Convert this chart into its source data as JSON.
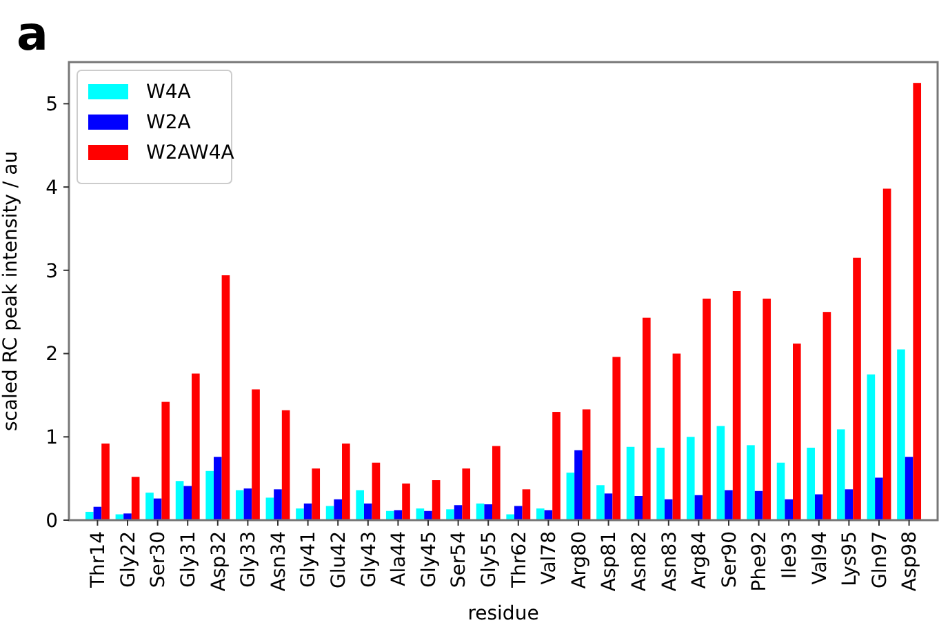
{
  "chart_data": {
    "type": "bar",
    "title": "a",
    "xlabel": "residue",
    "ylabel": "scaled RC peak intensity / au",
    "categories": [
      "Thr14",
      "Gly22",
      "Ser30",
      "Gly31",
      "Asp32",
      "Gly33",
      "Asn34",
      "Gly41",
      "Glu42",
      "Gly43",
      "Ala44",
      "Gly45",
      "Ser54",
      "Gly55",
      "Thr62",
      "Val78",
      "Arg80",
      "Asp81",
      "Asn82",
      "Asn83",
      "Arg84",
      "Ser90",
      "Phe92",
      "Ile93",
      "Val94",
      "Lys95",
      "Gln97",
      "Asp98"
    ],
    "series": [
      {
        "name": "W4A",
        "color": "#00ffff",
        "values": [
          0.1,
          0.07,
          0.33,
          0.47,
          0.59,
          0.36,
          0.27,
          0.14,
          0.17,
          0.36,
          0.11,
          0.14,
          0.13,
          0.2,
          0.07,
          0.14,
          0.57,
          0.42,
          0.88,
          0.87,
          1.0,
          1.13,
          0.9,
          0.69,
          0.87,
          1.09,
          1.75,
          2.05
        ]
      },
      {
        "name": "W2A",
        "color": "#0000ff",
        "values": [
          0.16,
          0.08,
          0.26,
          0.41,
          0.76,
          0.38,
          0.37,
          0.2,
          0.25,
          0.2,
          0.12,
          0.11,
          0.18,
          0.19,
          0.17,
          0.12,
          0.84,
          0.32,
          0.29,
          0.25,
          0.3,
          0.36,
          0.35,
          0.25,
          0.31,
          0.37,
          0.51,
          0.76
        ]
      },
      {
        "name": "W2AW4A",
        "color": "#ff0000",
        "values": [
          0.92,
          0.52,
          1.42,
          1.76,
          2.94,
          1.57,
          1.32,
          0.62,
          0.92,
          0.69,
          0.44,
          0.48,
          0.62,
          0.89,
          0.37,
          1.3,
          1.33,
          1.96,
          2.43,
          2.0,
          2.66,
          2.75,
          2.66,
          2.12,
          2.5,
          3.15,
          3.98,
          5.25
        ]
      }
    ],
    "ylim": [
      0,
      5.5
    ],
    "yticks": [
      0,
      1,
      2,
      3,
      4,
      5
    ],
    "grid": false,
    "legend": "top left"
  }
}
